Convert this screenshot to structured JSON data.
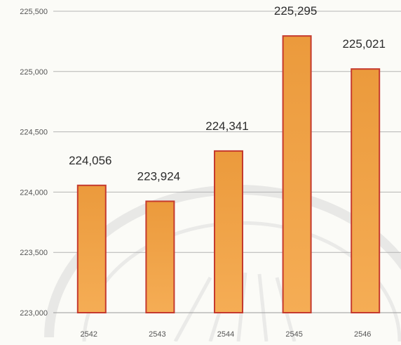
{
  "chart_data": {
    "type": "bar",
    "title": "",
    "xlabel": "",
    "ylabel": "",
    "categories": [
      "2542",
      "2543",
      "2544",
      "2545",
      "2546"
    ],
    "values": [
      224056,
      223924,
      224341,
      225295,
      225021
    ],
    "data_labels": [
      "224,056",
      "223,924",
      "224,341",
      "225,295",
      "225,021"
    ],
    "ylim": [
      223000,
      225500
    ],
    "yticks": [
      223000,
      223500,
      224000,
      224500,
      225000,
      225500
    ],
    "ytick_labels": [
      "223,000",
      "223,500",
      "224,000",
      "224,500",
      "225,000",
      "225,500"
    ],
    "grid": true,
    "legend": "none"
  },
  "colors": {
    "bar_fill": "#f5ad55",
    "bar_fill_dark": "#eb9a3c",
    "bar_edge": "#c53a2e",
    "grid": "#b4b4b4",
    "background": "#fbfbf7"
  }
}
